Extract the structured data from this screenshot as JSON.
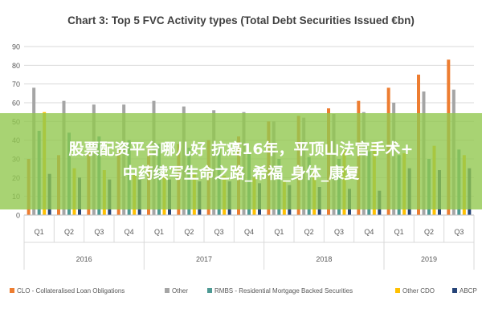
{
  "chart_data": {
    "type": "bar",
    "title": "Chart 3: Top 5 FVC Activity types (Total Debt Securities Issued €bn)",
    "ylim": [
      0,
      90
    ],
    "yticks": [
      "0",
      "10",
      "20",
      "30",
      "40",
      "50",
      "60",
      "70",
      "80",
      "90"
    ],
    "grid": true,
    "legend_position": "bottom",
    "categories": [
      "Q1",
      "Q2",
      "Q3",
      "Q4",
      "Q1",
      "Q2",
      "Q3",
      "Q4",
      "Q1",
      "Q2",
      "Q3",
      "Q4",
      "Q1",
      "Q2",
      "Q3"
    ],
    "year_groups": [
      {
        "label": "2016",
        "count": 4
      },
      {
        "label": "2017",
        "count": 4
      },
      {
        "label": "2018",
        "count": 4
      },
      {
        "label": "2019",
        "count": 3
      }
    ],
    "series": [
      {
        "name": "CLO - Collateralised Loan Obligations",
        "color": "#ed7d31",
        "values": [
          30,
          32,
          34,
          35,
          37,
          38,
          40,
          42,
          50,
          53,
          57,
          61,
          68,
          75,
          83
        ]
      },
      {
        "name": "Other",
        "color": "#a5a5a5",
        "values": [
          68,
          61,
          59,
          59,
          61,
          58,
          56,
          55,
          50,
          52,
          54,
          55,
          60,
          66,
          67
        ]
      },
      {
        "name": "RMBS - Residential Mortgage Backed Securities",
        "color": "#4e9a94",
        "values": [
          45,
          44,
          42,
          40,
          38,
          36,
          35,
          33,
          30,
          31,
          30,
          34,
          32,
          30,
          35
        ]
      },
      {
        "name": "Other CDO",
        "color": "#ffc000",
        "values": [
          55,
          25,
          24,
          22,
          22,
          22,
          21,
          20,
          18,
          25,
          35,
          38,
          33,
          37,
          32
        ]
      },
      {
        "name": "ABCP",
        "color": "#264478",
        "values": [
          22,
          20,
          19,
          19,
          19,
          18,
          18,
          17,
          16,
          15,
          14,
          13,
          25,
          24,
          25
        ]
      }
    ]
  },
  "overlay": {
    "line1": "股票配资平台哪儿好 抗癌16年，平顶山法官手术+",
    "line2": "中药续写生命之路_希福_身体_康复"
  }
}
